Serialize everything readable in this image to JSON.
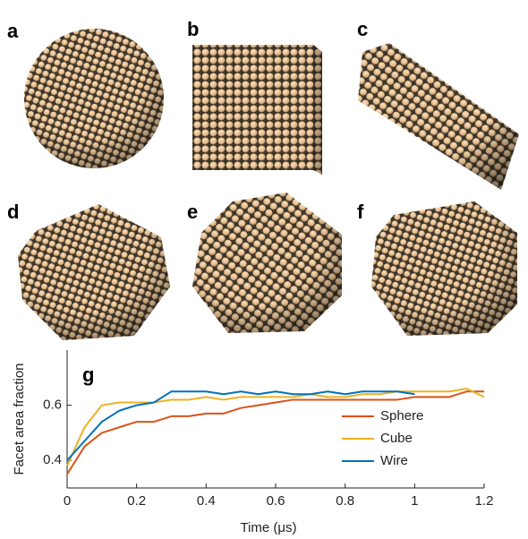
{
  "panels": [
    {
      "label": "a"
    },
    {
      "label": "b"
    },
    {
      "label": "c"
    },
    {
      "label": "d"
    },
    {
      "label": "e"
    },
    {
      "label": "f"
    }
  ],
  "chart_data": {
    "type": "line",
    "panel_label": "g",
    "x_label": "Time (μs)",
    "y_label": "Facet area fraction",
    "x": [
      0,
      0.05,
      0.1,
      0.15,
      0.2,
      0.25,
      0.3,
      0.35,
      0.4,
      0.45,
      0.5,
      0.55,
      0.6,
      0.65,
      0.7,
      0.75,
      0.8,
      0.85,
      0.9,
      0.95,
      1.0,
      1.05,
      1.1,
      1.15,
      1.2
    ],
    "series": [
      {
        "name": "Sphere",
        "color": "#d95319",
        "values": [
          0.35,
          0.45,
          0.5,
          0.52,
          0.54,
          0.54,
          0.56,
          0.56,
          0.57,
          0.57,
          0.59,
          0.6,
          0.61,
          0.62,
          0.62,
          0.62,
          0.62,
          0.62,
          0.62,
          0.62,
          0.63,
          0.63,
          0.63,
          0.65,
          0.65
        ]
      },
      {
        "name": "Cube",
        "color": "#edb120",
        "values": [
          0.38,
          0.52,
          0.6,
          0.61,
          0.61,
          0.61,
          0.62,
          0.62,
          0.63,
          0.62,
          0.63,
          0.63,
          0.63,
          0.63,
          0.64,
          0.63,
          0.63,
          0.64,
          0.64,
          0.65,
          0.65,
          0.65,
          0.65,
          0.66,
          0.63
        ]
      },
      {
        "name": "Wire",
        "color": "#0072bd",
        "values": [
          0.4,
          0.47,
          0.54,
          0.58,
          0.6,
          0.61,
          0.65,
          0.65,
          0.65,
          0.64,
          0.65,
          0.64,
          0.65,
          0.64,
          0.64,
          0.65,
          0.64,
          0.65,
          0.65,
          0.65,
          0.64,
          null,
          null,
          null,
          null
        ]
      }
    ],
    "xlim": [
      0,
      1.2
    ],
    "ylim": [
      0.3,
      0.8
    ],
    "xticks": [
      0,
      0.2,
      0.4,
      0.6,
      0.8,
      1,
      1.2
    ],
    "yticks": [
      0.4,
      0.6
    ],
    "legend": "right"
  }
}
